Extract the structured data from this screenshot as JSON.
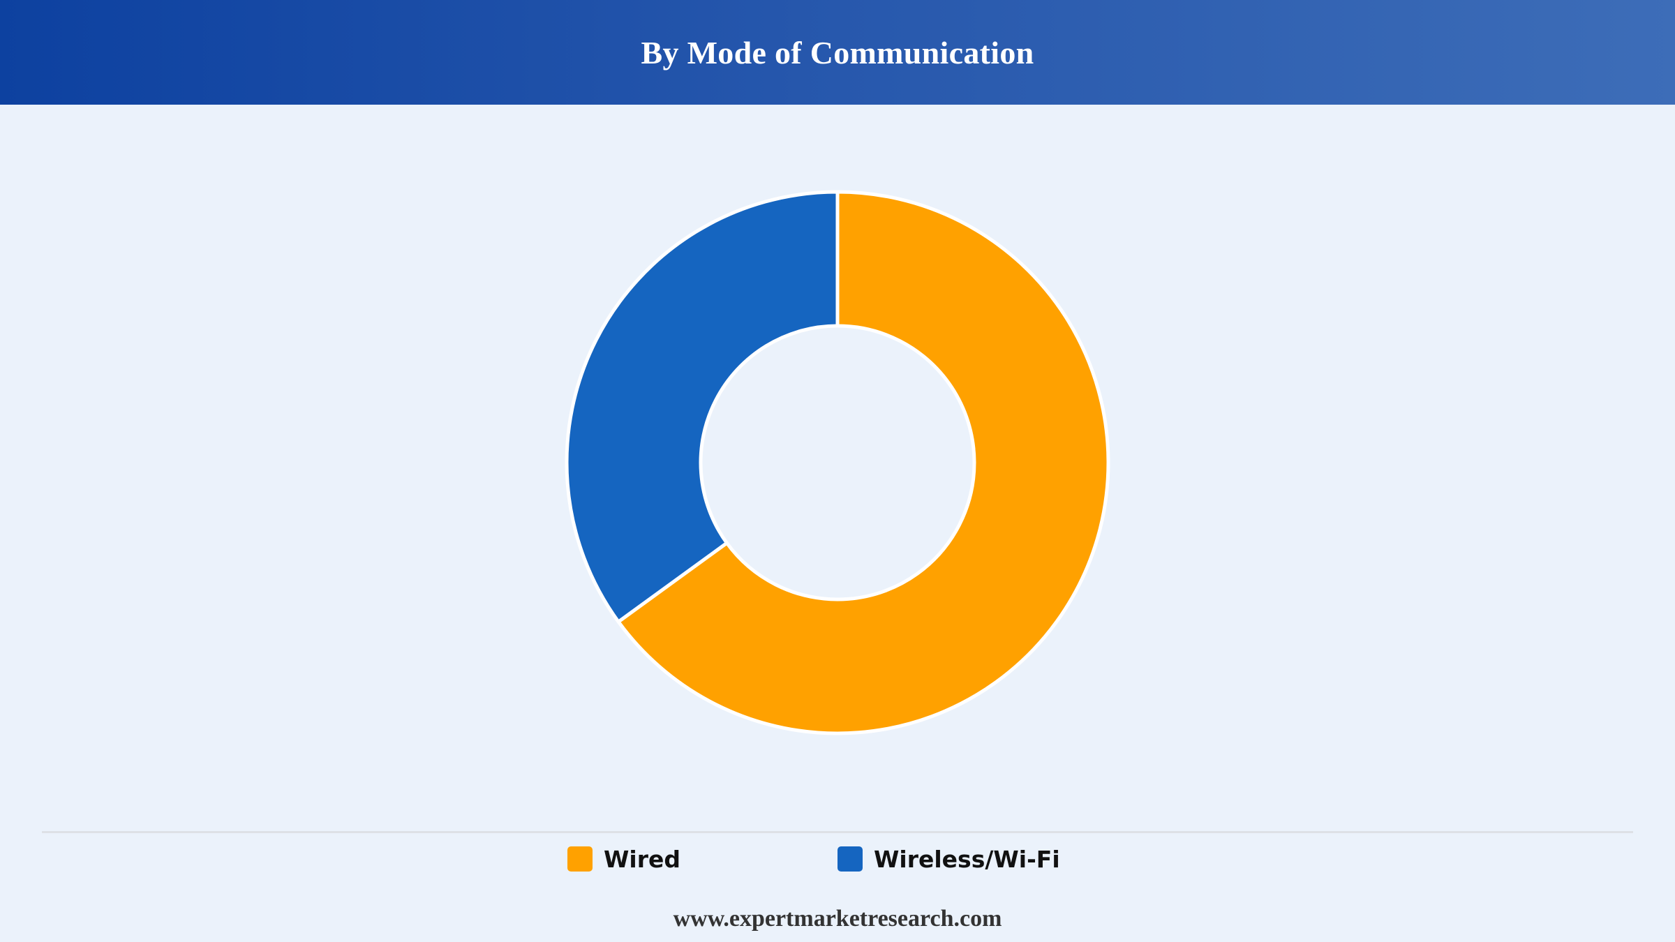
{
  "header": {
    "title": "By Mode of Communication"
  },
  "chart_data": {
    "type": "pie",
    "donut": true,
    "title": "By Mode of Communication",
    "start_angle_deg": 0,
    "direction": "clockwise",
    "slices": [
      {
        "label": "Wired",
        "value": 65,
        "color": "#ffa100"
      },
      {
        "label": "Wireless/Wi-Fi",
        "value": 35,
        "color": "#1565c0"
      }
    ],
    "legend_position": "bottom"
  },
  "legend": {
    "items": [
      {
        "label": "Wired",
        "color": "#ffa100"
      },
      {
        "label": "Wireless/Wi-Fi",
        "color": "#1565c0"
      }
    ]
  },
  "footer": {
    "text": "www.expertmarketresearch.com"
  }
}
